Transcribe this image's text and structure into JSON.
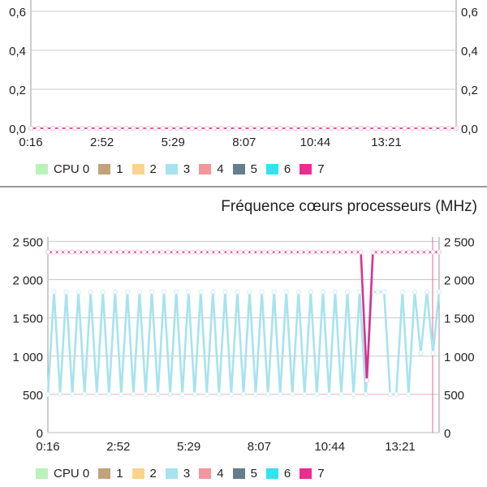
{
  "chart_data": [
    {
      "type": "line",
      "title": "",
      "xlabel": "",
      "ylabel": "",
      "x_ticks": [
        "0:16",
        "2:52",
        "5:29",
        "8:07",
        "10:44",
        "13:21"
      ],
      "y_ticks": [
        "0,0",
        "0,2",
        "0,4",
        "0,6"
      ],
      "ylim": [
        0,
        0.65
      ],
      "legend": [
        "CPU 0",
        "1",
        "2",
        "3",
        "4",
        "5",
        "6",
        "7"
      ],
      "series": [
        {
          "name": "CPU 0",
          "values": [
            0,
            0,
            0,
            0,
            0,
            0,
            0,
            0,
            0,
            0,
            0,
            0,
            0,
            0,
            0,
            0,
            0,
            0,
            0,
            0,
            0,
            0,
            0,
            0,
            0,
            0,
            0,
            0,
            0,
            0,
            0,
            0,
            0,
            0,
            0,
            0,
            0,
            0,
            0,
            0,
            0,
            0,
            0,
            0,
            0,
            0,
            0,
            0,
            0,
            0,
            0,
            0,
            0,
            0,
            0,
            0,
            0,
            0,
            0
          ]
        },
        {
          "name": "7",
          "values": [
            0,
            0,
            0,
            0,
            0,
            0,
            0,
            0,
            0,
            0,
            0,
            0,
            0,
            0,
            0,
            0,
            0,
            0,
            0,
            0,
            0,
            0,
            0,
            0,
            0,
            0,
            0,
            0,
            0,
            0,
            0,
            0,
            0,
            0,
            0,
            0,
            0,
            0,
            0,
            0,
            0,
            0,
            0,
            0,
            0,
            0,
            0,
            0,
            0,
            0,
            0,
            0,
            0,
            0,
            0,
            0,
            0,
            0,
            0
          ]
        }
      ]
    },
    {
      "type": "line",
      "title": "Fréquence cœurs processeurs (MHz)",
      "xlabel": "",
      "ylabel": "MHz",
      "x_ticks": [
        "0:16",
        "2:52",
        "5:29",
        "8:07",
        "10:44",
        "13:21"
      ],
      "y_ticks": [
        "0",
        "500",
        "1 000",
        "1 500",
        "2 000",
        "2 500"
      ],
      "ylim": [
        0,
        2600
      ],
      "legend": [
        "CPU 0",
        "1",
        "2",
        "3",
        "4",
        "5",
        "6",
        "7"
      ],
      "series": [
        {
          "name": "3",
          "values": [
            500,
            1840,
            500,
            1840,
            500,
            1840,
            500,
            1840,
            500,
            1840,
            500,
            1840,
            500,
            1840,
            500,
            1840,
            500,
            1840,
            500,
            1840,
            500,
            1840,
            500,
            1840,
            500,
            1840,
            500,
            1840,
            500,
            1840,
            500,
            1840,
            500,
            1840,
            500,
            1840,
            500,
            1840,
            500,
            1840,
            500,
            1840,
            500,
            1840,
            500,
            1840,
            500,
            1840,
            500,
            1840,
            500,
            1840,
            500,
            1840,
            1840,
            1840,
            500,
            500,
            1840,
            500,
            1840,
            1040,
            1840,
            1040,
            1840
          ]
        },
        {
          "name": "7",
          "values": [
            2360,
            2360,
            2360,
            2360,
            2360,
            2360,
            2360,
            2360,
            2360,
            2360,
            2360,
            2360,
            2360,
            2360,
            2360,
            2360,
            2360,
            2360,
            2360,
            2360,
            2360,
            2360,
            2360,
            2360,
            2360,
            2360,
            2360,
            2360,
            2360,
            2360,
            2360,
            2360,
            2360,
            2360,
            2360,
            2360,
            2360,
            2360,
            2360,
            2360,
            2360,
            2360,
            2360,
            2360,
            2360,
            2360,
            2360,
            2360,
            2360,
            2360,
            2360,
            2360,
            2360,
            680,
            2360,
            2360,
            2360,
            2360,
            2360,
            2360,
            2360,
            2360,
            2360,
            2360,
            2360,
            2360
          ]
        }
      ]
    }
  ],
  "legend": {
    "items": [
      {
        "label": "CPU 0",
        "color": "#b9f3b9"
      },
      {
        "label": "1",
        "color": "#c2a27a"
      },
      {
        "label": "2",
        "color": "#fbd38e"
      },
      {
        "label": "3",
        "color": "#a6e3ee"
      },
      {
        "label": "4",
        "color": "#f2979c"
      },
      {
        "label": "5",
        "color": "#657e8e"
      },
      {
        "label": "6",
        "color": "#33e2ef"
      },
      {
        "label": "7",
        "color": "#ea2d8f"
      }
    ]
  },
  "colors": {
    "series_3": "#a6e3ee",
    "series_7": "#d9328f",
    "marker_stroke": "#f2c4dc",
    "grid": "#bdbdbd",
    "grid_red": "#f2aec0"
  }
}
